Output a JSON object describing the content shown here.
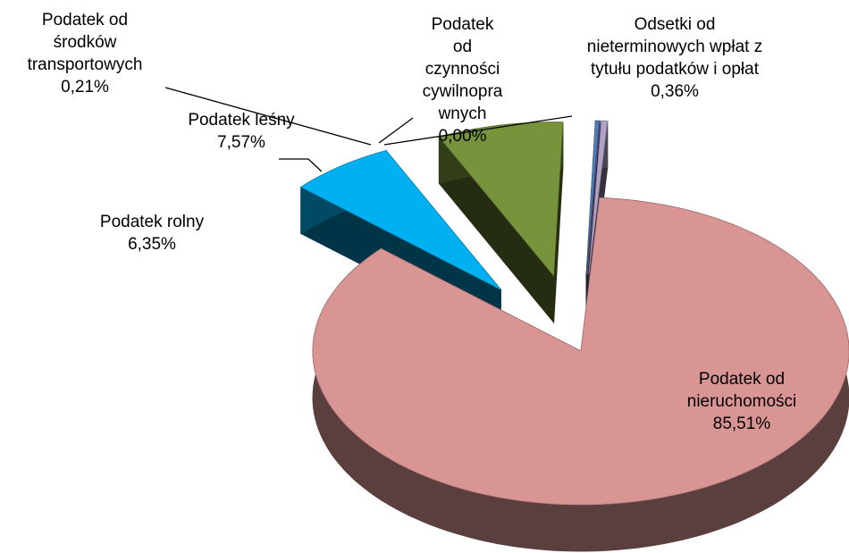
{
  "chart_data": {
    "type": "pie",
    "categories": [
      "Podatek od nieruchomości",
      "Podatek rolny",
      "Podatek leśny",
      "Podatek od środków transportowych",
      "Podatek od czynności cywilnoprawnych",
      "Odsetki od nieterminowych wpłat z tytułu podatków i opłat"
    ],
    "values": [
      85.51,
      6.35,
      7.57,
      0.21,
      0.0,
      0.36
    ],
    "value_labels": [
      "85,51%",
      "6,35%",
      "7,57%",
      "0,21%",
      "0,00%",
      "0,36%"
    ],
    "colors": [
      "#d99594",
      "#00b0f0",
      "#77933c",
      "#4f81bd",
      "#8064a2",
      "#b3a2c7"
    ]
  }
}
